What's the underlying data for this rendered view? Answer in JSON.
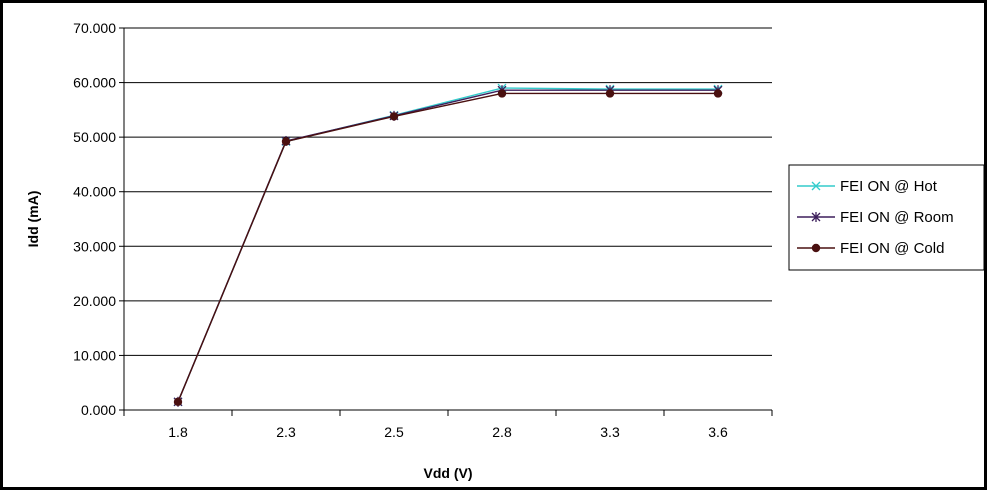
{
  "chart_data": {
    "type": "line",
    "title": "",
    "xlabel": "Vdd (V)",
    "ylabel": "Idd (mA)",
    "categories": [
      "1.8",
      "2.3",
      "2.5",
      "2.8",
      "3.3",
      "3.6"
    ],
    "ylim": [
      0,
      70
    ],
    "yticks": [
      "0.000",
      "10.000",
      "20.000",
      "30.000",
      "40.000",
      "50.000",
      "60.000",
      "70.000"
    ],
    "ytick_values": [
      0,
      10,
      20,
      30,
      40,
      50,
      60,
      70
    ],
    "grid": true,
    "legend_position": "right",
    "series": [
      {
        "name": "FEI ON @ Hot",
        "color": "#33cccc",
        "marker": "x",
        "values": [
          1.5,
          49.2,
          54.0,
          59.0,
          58.8,
          58.8
        ]
      },
      {
        "name": "FEI ON @ Room",
        "color": "#3d1f5c",
        "marker": "star",
        "values": [
          1.5,
          49.3,
          53.9,
          58.6,
          58.6,
          58.6
        ]
      },
      {
        "name": "FEI ON @ Cold",
        "color": "#4a1010",
        "marker": "diamond",
        "values": [
          1.5,
          49.2,
          53.8,
          58.0,
          58.0,
          58.0
        ]
      }
    ]
  }
}
